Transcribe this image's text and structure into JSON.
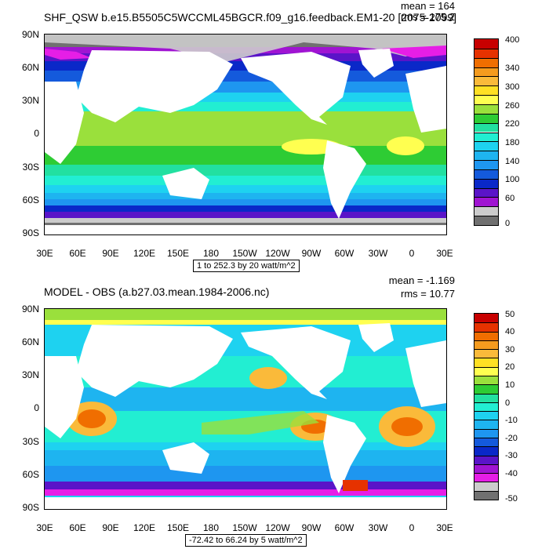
{
  "chart_data": [
    {
      "type": "heatmap",
      "title": "SHF_QSW b.e15.B5505C5WCCML45BGCR.f09_g16.feedback.EM1-20 [2075-2099]",
      "mean_label": "mean = 164",
      "rms_label": "rms = 175.2",
      "range_label": "1 to 252.3 by 20 watt/m^2",
      "y_ticks": [
        "90N",
        "60N",
        "30N",
        "0",
        "30S",
        "60S",
        "90S"
      ],
      "x_ticks": [
        "30E",
        "60E",
        "90E",
        "120E",
        "150E",
        "180",
        "150W",
        "120W",
        "90W",
        "60W",
        "30W",
        "0",
        "30E"
      ],
      "colorbar": {
        "labels": [
          "400",
          "340",
          "300",
          "260",
          "220",
          "180",
          "140",
          "100",
          "60",
          "0"
        ],
        "colors": [
          "#c80000",
          "#e63200",
          "#f06e00",
          "#f59b1e",
          "#faba3a",
          "#ffe024",
          "#ffff50",
          "#9ae03c",
          "#2ecc34",
          "#22e0a0",
          "#22eed2",
          "#1ed2f0",
          "#1eb4f0",
          "#1e96f0",
          "#145adc",
          "#0a28c8",
          "#5a14c8",
          "#a014d2",
          "#cccccc",
          "#707070"
        ]
      }
    },
    {
      "type": "heatmap",
      "title": "MODEL - OBS (a.b27.03.mean.1984-2006.nc)",
      "mean_label": "mean = -1.169",
      "rms_label": "rms = 10.77",
      "range_label": "-72.42 to 66.24 by 5 watt/m^2",
      "y_ticks": [
        "90N",
        "60N",
        "30N",
        "0",
        "30S",
        "60S",
        "90S"
      ],
      "x_ticks": [
        "30E",
        "60E",
        "90E",
        "120E",
        "150E",
        "180",
        "150W",
        "120W",
        "90W",
        "60W",
        "30W",
        "0",
        "30E"
      ],
      "colorbar": {
        "labels": [
          "50",
          "40",
          "30",
          "20",
          "10",
          "0",
          "-10",
          "-20",
          "-30",
          "-40",
          "-50"
        ],
        "colors": [
          "#c80000",
          "#e63200",
          "#f06e00",
          "#f59b1e",
          "#faba3a",
          "#ffe024",
          "#ffff50",
          "#9ae03c",
          "#2ecc34",
          "#22e0a0",
          "#22eed2",
          "#1ed2f0",
          "#1eb4f0",
          "#1e96f0",
          "#145adc",
          "#0a28c8",
          "#5a14c8",
          "#a014d2",
          "#e61ee6",
          "#cccccc",
          "#707070"
        ]
      }
    }
  ]
}
